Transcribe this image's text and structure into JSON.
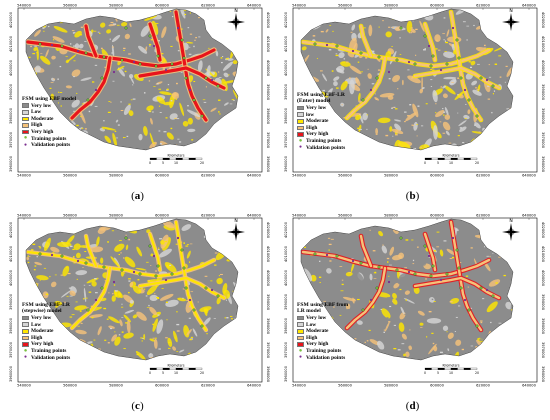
{
  "colors": {
    "very_low": "#8c8c8c",
    "low": "#d6d6d6",
    "moderate": "#ffe600",
    "high": "#f5c27a",
    "very_high": "#e8141b",
    "training": "#7bc043",
    "validation": "#7a2d8f"
  },
  "axis": {
    "x_ticks": [
      "540000",
      "560000",
      "580000",
      "600000",
      "620000",
      "640000"
    ],
    "y_ticks": [
      "4020000",
      "4010000",
      "4000000",
      "3990000",
      "3980000",
      "3970000",
      "3960000"
    ]
  },
  "scale": {
    "unit": "Kilometers",
    "labels": [
      "0",
      "5",
      "10",
      "20"
    ]
  },
  "north_label": "N",
  "panels": [
    {
      "caption": "a",
      "legend_title": "FSM using EBF model",
      "items": [
        "Very low",
        "Low",
        "Moderate",
        "High",
        "Very high",
        "Training points",
        "Validation points"
      ],
      "palette": [
        "very_low",
        "low",
        "moderate",
        "high",
        "very_high"
      ],
      "theme": "ebf"
    },
    {
      "caption": "b",
      "legend_title": "FSM using EBF-LR\n(Enter) model",
      "items": [
        "Very low",
        "low",
        "Moderate",
        "High",
        "Very high",
        "Training points",
        "Validation points"
      ],
      "palette": [
        "very_low",
        "low",
        "moderate",
        "high",
        "very_high"
      ],
      "theme": "enter"
    },
    {
      "caption": "c",
      "legend_title": "FSM using EBF-LR\n(stepwise) model",
      "items": [
        "Very low",
        "Low",
        "Moderate",
        "High",
        "Very high",
        "Training points",
        "Validation points"
      ],
      "palette": [
        "very_low",
        "low",
        "moderate",
        "high",
        "very_high"
      ],
      "theme": "stepwise"
    },
    {
      "caption": "d",
      "legend_title": "FSM using EBF from\nLR model",
      "items": [
        "Very low",
        "Low",
        "Moderate",
        "High",
        "Very high",
        "Training points",
        "Validation points"
      ],
      "palette": [
        "very_low",
        "low",
        "moderate",
        "high",
        "very_high"
      ],
      "theme": "fromlr"
    }
  ]
}
